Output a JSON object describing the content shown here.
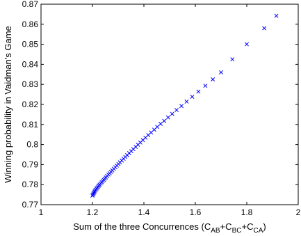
{
  "chart_data": {
    "type": "scatter",
    "marker": "x",
    "color": "#0000ff",
    "xlabel": {
      "prefix": "Sum of the three Concurrences (C",
      "sub1": "AB",
      "mid1": "+C",
      "sub2": "BC",
      "mid2": "+C",
      "sub3": "CA",
      "suffix": ")"
    },
    "ylabel": "Winning probability in Vaidman's Game",
    "xlim": [
      1,
      2
    ],
    "ylim": [
      0.77,
      0.87
    ],
    "xticks": [
      "1",
      "1.2",
      "1.4",
      "1.6",
      "1.8",
      "2"
    ],
    "yticks": [
      "0.77",
      "0.78",
      "0.79",
      "0.8",
      "0.81",
      "0.82",
      "0.83",
      "0.84",
      "0.85",
      "0.86",
      "0.87"
    ],
    "grid": false,
    "series": [
      {
        "x": [
          1.2,
          1.202,
          1.204,
          1.206,
          1.208,
          1.21,
          1.213,
          1.216,
          1.219,
          1.222,
          1.225,
          1.228,
          1.232,
          1.236,
          1.24,
          1.244,
          1.248,
          1.252,
          1.257,
          1.262,
          1.267,
          1.272,
          1.277,
          1.283,
          1.289,
          1.295,
          1.301,
          1.307,
          1.314,
          1.321,
          1.328,
          1.335,
          1.343,
          1.351,
          1.359,
          1.368,
          1.377,
          1.386,
          1.396,
          1.406,
          1.417,
          1.428,
          1.44,
          1.452,
          1.465,
          1.479,
          1.494,
          1.51,
          1.527,
          1.546,
          1.566,
          1.588,
          1.612,
          1.639,
          1.668,
          1.7,
          1.744,
          1.8,
          1.868,
          1.915
        ],
        "y": [
          0.7745,
          0.775,
          0.7755,
          0.776,
          0.7765,
          0.777,
          0.7775,
          0.778,
          0.7785,
          0.779,
          0.7795,
          0.78,
          0.7806,
          0.7812,
          0.7818,
          0.7824,
          0.783,
          0.7836,
          0.7843,
          0.785,
          0.7857,
          0.7864,
          0.7871,
          0.7879,
          0.7887,
          0.7895,
          0.7903,
          0.7911,
          0.792,
          0.7929,
          0.7938,
          0.7947,
          0.7957,
          0.7967,
          0.7977,
          0.7988,
          0.7999,
          0.801,
          0.8022,
          0.8034,
          0.8047,
          0.806,
          0.8074,
          0.8088,
          0.8103,
          0.8118,
          0.8135,
          0.8153,
          0.8172,
          0.8192,
          0.8214,
          0.8238,
          0.8264,
          0.8293,
          0.8325,
          0.836,
          0.8425,
          0.85,
          0.858,
          0.8642
        ]
      }
    ]
  }
}
